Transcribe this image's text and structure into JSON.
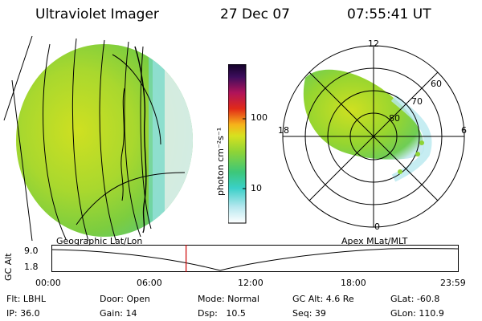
{
  "header": {
    "instrument": "Ultraviolet Imager",
    "date": "27 Dec 07",
    "time": "07:55:41 UT"
  },
  "colorbar": {
    "unit_label": "photon cm⁻²s⁻¹",
    "ticks": [
      "100",
      "10"
    ]
  },
  "polar_plot": {
    "mlt_labels": [
      "12",
      "18",
      "6",
      "0"
    ],
    "lat_labels": [
      "60",
      "70",
      "80"
    ]
  },
  "panel_labels": {
    "left": "Geographic Lat/Lon",
    "right": "Apex MLat/MLT"
  },
  "altitude_plot": {
    "ylabel": "GC Alt",
    "yticks": [
      "9.0",
      "1.8"
    ],
    "xticks": [
      "00:00",
      "06:00",
      "12:00",
      "18:00",
      "23:59"
    ],
    "current_time_fraction": 0.33
  },
  "status": {
    "filter": "Flt: LBHL",
    "door": "Door: Open",
    "mode": "Mode: Normal",
    "gc_alt": "GC Alt: 4.6 Re",
    "glat": "GLat: -60.8",
    "ip": "IP: 36.0",
    "gain": "Gain: 14",
    "dsp": "Dsp:   10.5",
    "seq": "Seq: 39",
    "glon": "GLon: 110.9"
  },
  "colors": {
    "background": "#ffffff",
    "marker": "#cc0000",
    "image_main": "#8fd436",
    "image_bright": "#d7e11f",
    "image_edge": "#35d0c0"
  }
}
